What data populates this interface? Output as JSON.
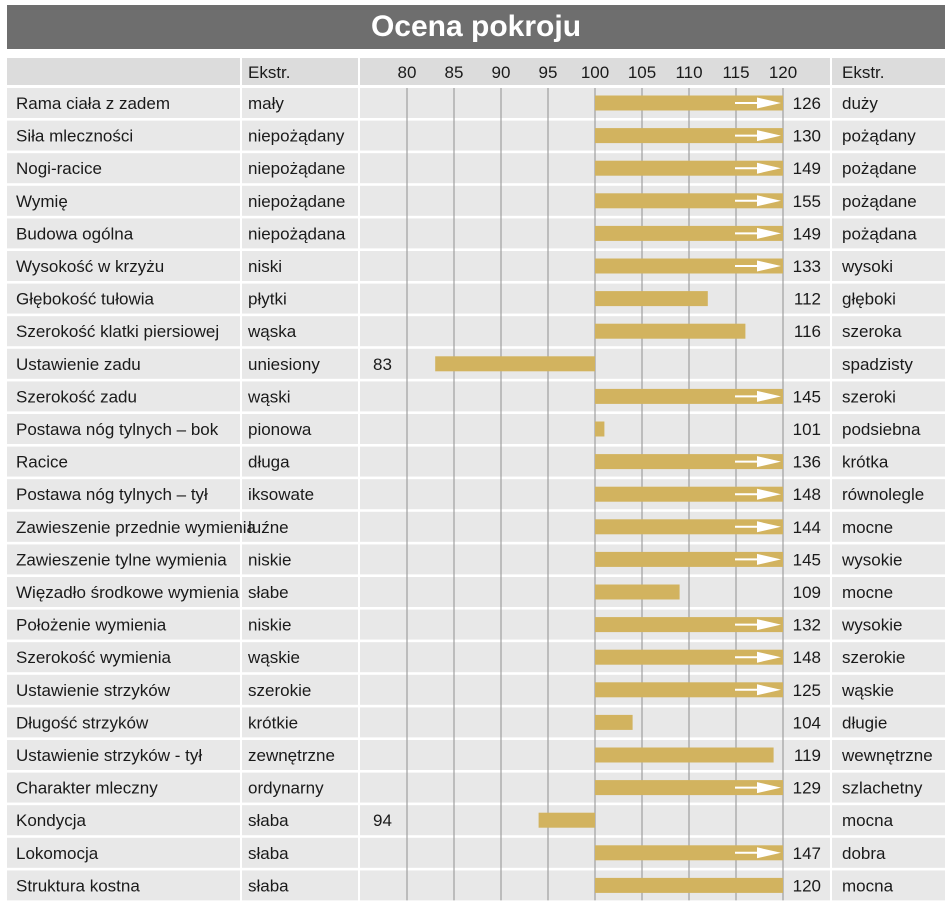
{
  "title": "Ocena pokroju",
  "headers": {
    "ekstr_left": "Ekstr.",
    "ekstr_right": "Ekstr."
  },
  "colors": {
    "title_bg": "#6e6e6e",
    "row_bg": "#e8e8e8",
    "header_bg": "#dcdcdc",
    "bar": "#d2b35f",
    "arrow": "#ffffff",
    "grid": "#a0a0a0"
  },
  "chart_data": {
    "type": "bar",
    "orientation": "horizontal",
    "baseline": 100,
    "xlim": [
      77,
      120
    ],
    "x_ticks": [
      80,
      85,
      90,
      95,
      100,
      105,
      110,
      115,
      120
    ],
    "overflow_marker": "arrow at 120 for values above 120",
    "rows": [
      {
        "trait": "Rama ciała z zadem",
        "low": "mały",
        "value": 126,
        "high": "duży"
      },
      {
        "trait": "Siła mleczności",
        "low": "niepożądany",
        "value": 130,
        "high": "pożądany"
      },
      {
        "trait": "Nogi-racice",
        "low": "niepożądane",
        "value": 149,
        "high": "pożądane"
      },
      {
        "trait": "Wymię",
        "low": "niepożądane",
        "value": 155,
        "high": "pożądane"
      },
      {
        "trait": "Budowa ogólna",
        "low": "niepożądana",
        "value": 149,
        "high": "pożądana"
      },
      {
        "trait": "Wysokość w krzyżu",
        "low": "niski",
        "value": 133,
        "high": "wysoki"
      },
      {
        "trait": "Głębokość tułowia",
        "low": "płytki",
        "value": 112,
        "high": "głęboki"
      },
      {
        "trait": "Szerokość klatki piersiowej",
        "low": "wąska",
        "value": 116,
        "high": "szeroka"
      },
      {
        "trait": "Ustawienie zadu",
        "low": "uniesiony",
        "value": 83,
        "high": "spadzisty"
      },
      {
        "trait": "Szerokość zadu",
        "low": "wąski",
        "value": 145,
        "high": "szeroki"
      },
      {
        "trait": "Postawa nóg tylnych –  bok",
        "low": "pionowa",
        "value": 101,
        "high": "podsiebna"
      },
      {
        "trait": "Racice",
        "low": "długa",
        "value": 136,
        "high": "krótka"
      },
      {
        "trait": "Postawa nóg tylnych –  tył",
        "low": "iksowate",
        "value": 148,
        "high": "równolegle"
      },
      {
        "trait": "Zawieszenie przednie wymienia",
        "low": "luźne",
        "value": 144,
        "high": "mocne"
      },
      {
        "trait": "Zawieszenie tylne wymienia",
        "low": "niskie",
        "value": 145,
        "high": "wysokie"
      },
      {
        "trait": "Więzadło środkowe wymienia",
        "low": "słabe",
        "value": 109,
        "high": "mocne"
      },
      {
        "trait": "Położenie wymienia",
        "low": "niskie",
        "value": 132,
        "high": "wysokie"
      },
      {
        "trait": "Szerokość wymienia",
        "low": "wąskie",
        "value": 148,
        "high": "szerokie"
      },
      {
        "trait": "Ustawienie strzyków",
        "low": "szerokie",
        "value": 125,
        "high": "wąskie"
      },
      {
        "trait": "Długość strzyków",
        "low": "krótkie",
        "value": 104,
        "high": "długie"
      },
      {
        "trait": "Ustawienie strzyków - tył",
        "low": "zewnętrzne",
        "value": 119,
        "high": "wewnętrzne"
      },
      {
        "trait": "Charakter mleczny",
        "low": "ordynarny",
        "value": 129,
        "high": "szlachetny"
      },
      {
        "trait": "Kondycja",
        "low": "słaba",
        "value": 94,
        "high": "mocna"
      },
      {
        "trait": "Lokomocja",
        "low": "słaba",
        "value": 147,
        "high": "dobra"
      },
      {
        "trait": "Struktura kostna",
        "low": "słaba",
        "value": 120,
        "high": "mocna"
      }
    ]
  }
}
